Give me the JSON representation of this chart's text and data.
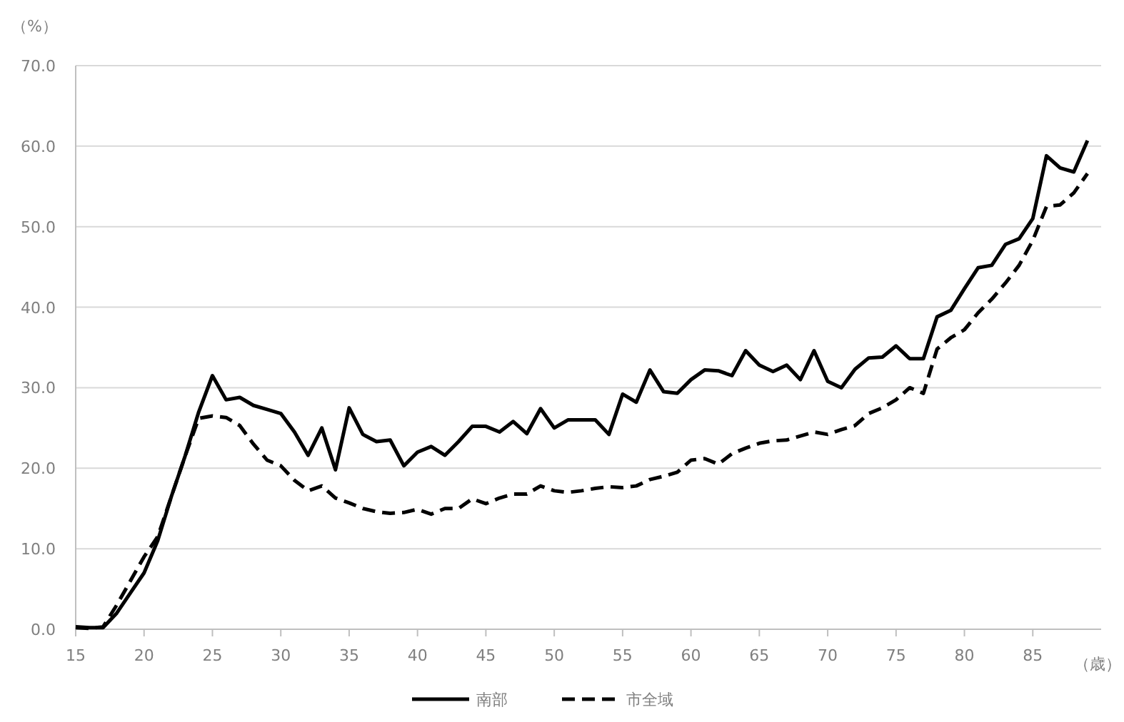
{
  "chart_data": {
    "type": "line",
    "xlabel": "（歳）",
    "ylabel": "（%）",
    "x": [
      15,
      16,
      17,
      18,
      19,
      20,
      21,
      22,
      23,
      24,
      25,
      26,
      27,
      28,
      29,
      30,
      31,
      32,
      33,
      34,
      35,
      36,
      37,
      38,
      39,
      40,
      41,
      42,
      43,
      44,
      45,
      46,
      47,
      48,
      49,
      50,
      51,
      52,
      53,
      54,
      55,
      56,
      57,
      58,
      59,
      60,
      61,
      62,
      63,
      64,
      65,
      66,
      67,
      68,
      69,
      70,
      71,
      72,
      73,
      74,
      75,
      76,
      77,
      78,
      79,
      80,
      81,
      82,
      83,
      84,
      85,
      86,
      87,
      88,
      89
    ],
    "series": [
      {
        "name": "南部",
        "color": "#000000",
        "line_style": "solid",
        "values": [
          0.3,
          0.2,
          0.2,
          2,
          4.5,
          7,
          11,
          16.5,
          21.5,
          27,
          31.5,
          28.5,
          28.8,
          27.8,
          27.3,
          26.8,
          24.5,
          21.6,
          25,
          19.8,
          27.5,
          24.2,
          23.3,
          23.5,
          20.3,
          22,
          22.7,
          21.6,
          23.3,
          25.2,
          25.2,
          24.5,
          25.8,
          24.3,
          27.4,
          25,
          26,
          26,
          26,
          24.2,
          29.2,
          28.2,
          32.2,
          29.5,
          29.3,
          31,
          32.2,
          32.1,
          31.5,
          34.6,
          32.8,
          32,
          32.8,
          31,
          34.6,
          30.8,
          30,
          32.3,
          33.7,
          33.8,
          35.2,
          33.6,
          33.6,
          38.8,
          39.6,
          42.3,
          44.9,
          45.2,
          47.8,
          48.5,
          51,
          58.8,
          57.3,
          56.8,
          60.7
        ]
      },
      {
        "name": "市全域",
        "color": "#000000",
        "line_style": "dashed",
        "values": [
          0.2,
          0.1,
          0.3,
          3,
          6,
          9,
          11.5,
          16.5,
          21.5,
          26.2,
          26.5,
          26.3,
          25.3,
          23,
          21,
          20.3,
          18.5,
          17.2,
          17.8,
          16.3,
          15.7,
          15,
          14.6,
          14.4,
          14.5,
          14.9,
          14.3,
          15,
          15,
          16.2,
          15.6,
          16.3,
          16.8,
          16.8,
          17.8,
          17.2,
          17,
          17.2,
          17.5,
          17.7,
          17.6,
          17.8,
          18.6,
          19,
          19.5,
          21,
          21.2,
          20.5,
          21.8,
          22.5,
          23.1,
          23.4,
          23.5,
          24,
          24.5,
          24.2,
          24.8,
          25.3,
          26.8,
          27.5,
          28.5,
          30,
          29.3,
          34.8,
          36.2,
          37.2,
          39.3,
          41,
          43,
          45.2,
          48.3,
          52.5,
          52.7,
          54.2,
          56.6
        ]
      }
    ],
    "xlim": [
      15,
      90
    ],
    "ylim": [
      0,
      70
    ],
    "xticks": [
      15,
      20,
      25,
      30,
      35,
      40,
      45,
      50,
      55,
      60,
      65,
      70,
      75,
      80,
      85
    ],
    "yticks": [
      {
        "value": 0,
        "label": "0.0"
      },
      {
        "value": 10,
        "label": "10.0"
      },
      {
        "value": 20,
        "label": "20.0"
      },
      {
        "value": 30,
        "label": "30.0"
      },
      {
        "value": 40,
        "label": "40.0"
      },
      {
        "value": 50,
        "label": "50.0"
      },
      {
        "value": 60,
        "label": "60.0"
      },
      {
        "value": 70,
        "label": "70.0"
      }
    ],
    "grid": "y",
    "legend": "bottom"
  }
}
